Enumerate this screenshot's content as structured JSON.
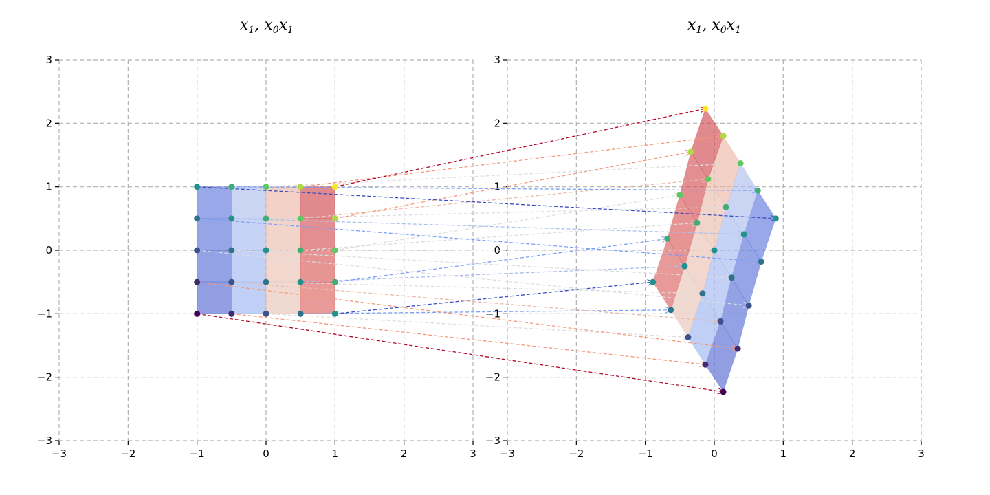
{
  "chart_data": [
    {
      "type": "scatter",
      "panel": "input",
      "title": "x_1, x_0x_1",
      "xlim": [
        -3,
        3
      ],
      "ylim": [
        -3,
        3
      ],
      "xticks": [
        "−3",
        "−2",
        "−1",
        "0",
        "1",
        "2",
        "3"
      ],
      "yticks": [
        "−3",
        "−2",
        "−1",
        "0",
        "1",
        "2",
        "3"
      ],
      "grid": true,
      "grid_x": [
        -3,
        -2,
        -1,
        0,
        1,
        2,
        3
      ],
      "grid_y": [
        -3,
        -2,
        -1,
        0,
        1,
        2,
        3
      ],
      "mesh_x": [
        -1,
        -0.5,
        0,
        0.5,
        1
      ],
      "mesh_y": [
        -1,
        -0.5,
        0,
        0.5,
        1
      ]
    },
    {
      "type": "scatter",
      "panel": "output",
      "title": "x_1, x_0x_1",
      "xlim": [
        -3,
        3
      ],
      "ylim": [
        -3,
        3
      ],
      "xticks": [
        "−3",
        "−2",
        "−1",
        "0",
        "1",
        "2",
        "3"
      ],
      "yticks": [
        "−3",
        "−2",
        "−1",
        "0",
        "1",
        "2",
        "3"
      ],
      "grid": true,
      "grid_x": [
        -3,
        -2,
        -1,
        0,
        1,
        2,
        3
      ],
      "grid_y": [
        -3,
        -2,
        -1,
        0,
        1,
        2,
        3
      ],
      "mapped_points": [
        [
          [
            0.13,
            -2.23
          ],
          [
            -0.13,
            -1.8
          ],
          [
            -0.38,
            -1.37
          ],
          [
            -0.63,
            -0.94
          ],
          [
            -0.89,
            -0.5
          ]
        ],
        [
          [
            0.34,
            -1.55
          ],
          [
            0.09,
            -1.12
          ],
          [
            -0.17,
            -0.68
          ],
          [
            -0.43,
            -0.25
          ],
          [
            -0.68,
            0.18
          ]
        ],
        [
          [
            0.5,
            -0.87
          ],
          [
            0.25,
            -0.43
          ],
          [
            0.0,
            0.0
          ],
          [
            -0.25,
            0.43
          ],
          [
            -0.5,
            0.87
          ]
        ],
        [
          [
            0.68,
            -0.18
          ],
          [
            0.43,
            0.25
          ],
          [
            0.17,
            0.68
          ],
          [
            -0.09,
            1.12
          ],
          [
            -0.34,
            1.55
          ]
        ],
        [
          [
            0.89,
            0.5
          ],
          [
            0.63,
            0.94
          ],
          [
            0.38,
            1.37
          ],
          [
            0.13,
            1.8
          ],
          [
            -0.13,
            2.23
          ]
        ]
      ]
    }
  ],
  "colors": {
    "coolwarm_low": "#3b4cc0",
    "coolwarm_mid": "#dddddd",
    "coolwarm_high": "#b40426",
    "viridis_low": "#440154",
    "viridis_high": "#fde725",
    "grid": "#b0b0b0"
  }
}
